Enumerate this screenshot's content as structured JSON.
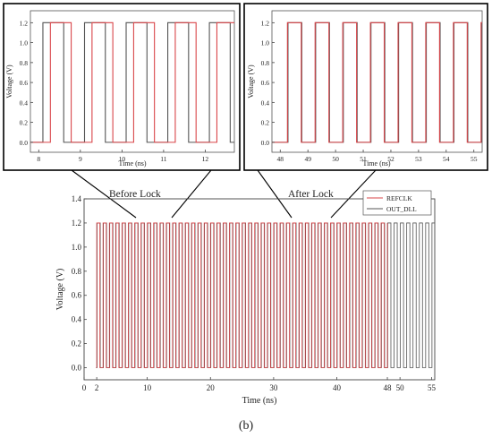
{
  "chart_data": [
    {
      "type": "line",
      "panel": "main",
      "xlabel": "Time (ns)",
      "ylabel": "Voltage (V)",
      "xlim": [
        0,
        55.5
      ],
      "ylim": [
        -0.1,
        1.4
      ],
      "xticks": [
        0,
        2,
        10,
        20,
        30,
        40,
        48,
        50,
        55
      ],
      "yticks": [
        0.0,
        0.2,
        0.4,
        0.6,
        0.8,
        1.0,
        1.2,
        1.4
      ],
      "x_tick_labels": [
        "0",
        "2",
        "10",
        "20",
        "30",
        "40",
        "48",
        "50",
        "55"
      ],
      "y_tick_labels": [
        "0.0",
        "0.2",
        "0.4",
        "0.6",
        "0.8",
        "1.0",
        "1.2",
        "1.4"
      ],
      "legend_position": "top-right",
      "series": [
        {
          "name": "REFCLK",
          "color": "#d9464a",
          "kind": "square-wave",
          "low": 0.0,
          "high": 1.2,
          "start": 1.9,
          "end": 48.0,
          "period": 1.0,
          "delay": 0.0
        },
        {
          "name": "OUT_DLL",
          "color": "#555555",
          "kind": "square-wave",
          "low": 0.0,
          "high": 1.2,
          "start": 1.9,
          "end": 55.5,
          "period": 1.0,
          "delay": 0.06
        }
      ]
    },
    {
      "type": "line",
      "panel": "inset-before-lock",
      "xlabel": "Time (ns)",
      "ylabel": "Voltage (V)",
      "xlim": [
        7.8,
        12.7
      ],
      "ylim": [
        -0.1,
        1.32
      ],
      "xticks": [
        8,
        9,
        10,
        11,
        12
      ],
      "yticks": [
        0.0,
        0.2,
        0.4,
        0.6,
        0.8,
        1.0,
        1.2
      ],
      "x_tick_labels": [
        "8",
        "9",
        "10",
        "11",
        "12"
      ],
      "y_tick_labels": [
        "0.0",
        "0.2",
        "0.4",
        "0.6",
        "0.8",
        "1.0",
        "1.2"
      ],
      "series": [
        {
          "name": "REFCLK",
          "color": "#d9464a",
          "kind": "square-wave",
          "low": 0.0,
          "high": 1.2,
          "start": 7.8,
          "end": 12.7,
          "period": 1.0,
          "phase": 0.28
        },
        {
          "name": "OUT_DLL",
          "color": "#555555",
          "kind": "square-wave",
          "low": 0.0,
          "high": 1.2,
          "start": 7.8,
          "end": 12.7,
          "period": 1.0,
          "phase": 0.1
        }
      ]
    },
    {
      "type": "line",
      "panel": "inset-after-lock",
      "xlabel": "Time (ns)",
      "ylabel": "Voltage (V)",
      "xlim": [
        47.7,
        55.3
      ],
      "ylim": [
        -0.1,
        1.32
      ],
      "xticks": [
        48,
        49,
        50,
        51,
        52,
        53,
        54,
        55
      ],
      "yticks": [
        0.0,
        0.2,
        0.4,
        0.6,
        0.8,
        1.0,
        1.2
      ],
      "x_tick_labels": [
        "48",
        "49",
        "50",
        "51",
        "52",
        "53",
        "54",
        "55"
      ],
      "y_tick_labels": [
        "0.0",
        "0.2",
        "0.4",
        "0.6",
        "0.8",
        "1.0",
        "1.2"
      ],
      "series": [
        {
          "name": "REFCLK",
          "color": "#d9464a",
          "kind": "square-wave",
          "low": 0.0,
          "high": 1.2,
          "start": 47.7,
          "end": 55.3,
          "period": 1.0,
          "phase": 0.26
        },
        {
          "name": "OUT_DLL",
          "color": "#555555",
          "kind": "square-wave",
          "low": 0.0,
          "high": 1.2,
          "start": 47.7,
          "end": 55.3,
          "period": 1.0,
          "phase": 0.28
        }
      ]
    }
  ],
  "annotations": {
    "before_lock": "Before Lock",
    "after_lock": "After Lock"
  },
  "legend": {
    "refclk": "REFCLK",
    "out_dll": "OUT_DLL"
  },
  "caption": "(b)"
}
